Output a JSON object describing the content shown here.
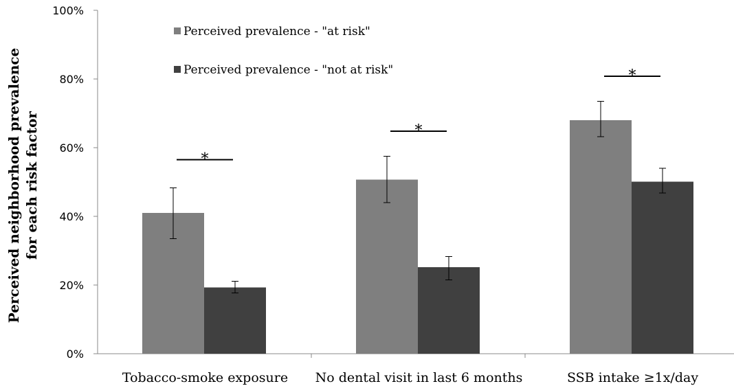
{
  "chart_data": {
    "type": "bar",
    "ylabel": "Perceived neighborhood prevalence for each risk factor",
    "ylabel_lines": [
      "Perceived neighborhood prevalence",
      "for each risk factor"
    ],
    "ylim": [
      0,
      100
    ],
    "yticks": [
      {
        "value": 0,
        "label": "0%"
      },
      {
        "value": 20,
        "label": "20%"
      },
      {
        "value": 40,
        "label": "40%"
      },
      {
        "value": 60,
        "label": "60%"
      },
      {
        "value": 80,
        "label": "80%"
      },
      {
        "value": 100,
        "label": "100%"
      }
    ],
    "categories": [
      "Tobacco-smoke exposure",
      "No dental visit in last 6 months",
      "SSB intake ≥1x/day"
    ],
    "series": [
      {
        "name": "Perceived prevalence - \"at risk\"",
        "color": "#7f7f7f",
        "values": [
          41,
          50.7,
          68
        ],
        "error_low": [
          33.5,
          44,
          63.2
        ],
        "error_high": [
          48.3,
          57.5,
          73.5
        ]
      },
      {
        "name": "Perceived prevalence - \"not at risk\"",
        "color": "#404040",
        "values": [
          19.3,
          25.2,
          50.1
        ],
        "error_low": [
          17.7,
          21.5,
          46.8
        ],
        "error_high": [
          21.1,
          28.3,
          54
        ]
      }
    ],
    "significance": [
      {
        "label": "*",
        "y": 56.5
      },
      {
        "label": "*",
        "y": 64.8
      },
      {
        "label": "*",
        "y": 80.8
      }
    ],
    "legend_position": "top-left",
    "grid": false
  }
}
